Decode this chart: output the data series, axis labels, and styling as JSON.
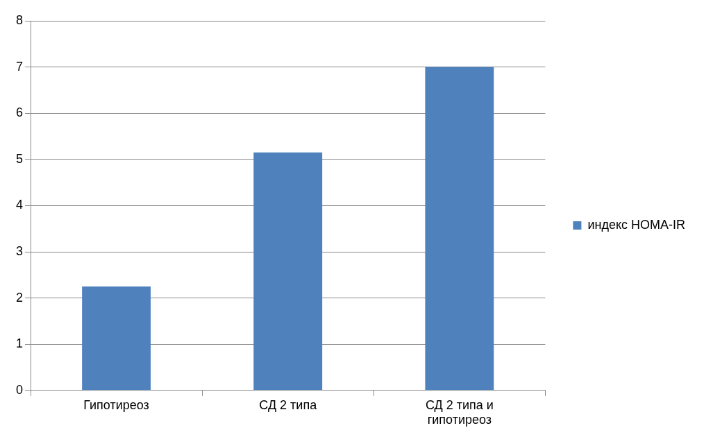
{
  "chart_data": {
    "type": "bar",
    "categories": [
      "Гипотиреоз",
      "СД 2 типа",
      "СД 2 типа и гипотиреоз"
    ],
    "series": [
      {
        "name": "индекс HOMA-IR",
        "color": "#4f81bd",
        "values": [
          2.25,
          5.15,
          7.0
        ]
      }
    ],
    "ylim": [
      0,
      8
    ],
    "yticks": [
      0,
      1,
      2,
      3,
      4,
      5,
      6,
      7,
      8
    ],
    "grid": "y",
    "legend": "right"
  }
}
